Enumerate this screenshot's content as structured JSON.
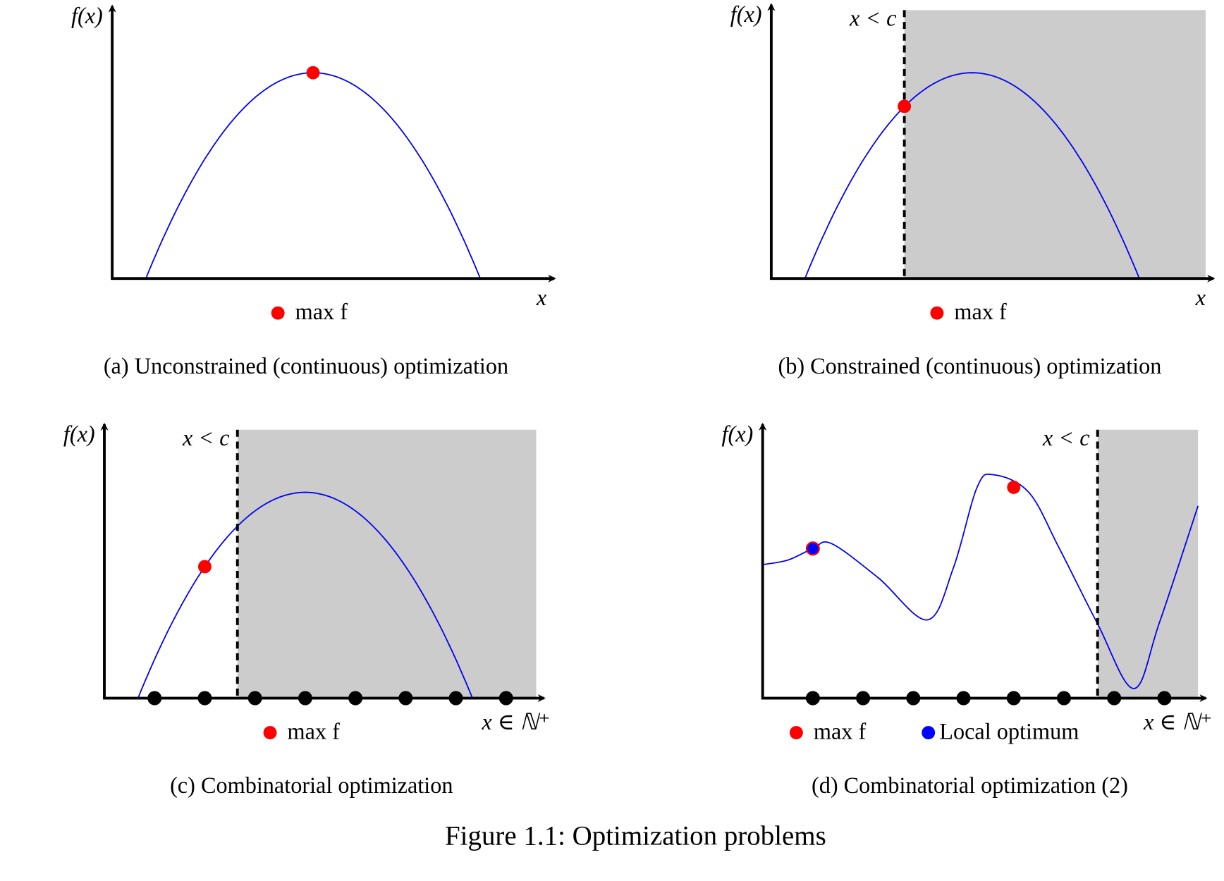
{
  "figure_caption": "Figure 1.1: Optimization problems",
  "colors": {
    "curve": "#0000ee",
    "max": "#ff0000",
    "local": "#0000ff",
    "shade": "#cccccc",
    "axis": "#000000"
  },
  "chart_data": {
    "type": "line",
    "title": "Figure 1.1: Optimization problems",
    "panels": [
      {
        "id": "a",
        "caption": "(a) Unconstrained (continuous) optimization",
        "ylabel": "f(x)",
        "xlabel": "x",
        "xlim": [
          0,
          8.65
        ],
        "ylim": [
          0,
          5.27
        ],
        "curve": {
          "kind": "parabola",
          "peak_x": 4,
          "peak_y": 4.1,
          "half_width": 3.33
        },
        "constraint": null,
        "integer_points": [],
        "markers": [
          {
            "type": "max",
            "x": 4,
            "y": 4.1
          }
        ],
        "legend": [
          {
            "type": "max",
            "label": "max f"
          }
        ]
      },
      {
        "id": "b",
        "caption": "(b) Constrained (continuous) optimization",
        "ylabel": "f(x)",
        "xlabel": "x",
        "xlim": [
          0,
          8.65
        ],
        "ylim": [
          0,
          5.3
        ],
        "curve": {
          "kind": "parabola",
          "peak_x": 4,
          "peak_y": 4.1,
          "half_width": 3.33
        },
        "constraint": {
          "label": "x < c",
          "c": 2.65
        },
        "integer_points": [],
        "markers": [
          {
            "type": "max",
            "x": 2.65,
            "y": 3.43
          }
        ],
        "legend": [
          {
            "type": "max",
            "label": "max f"
          }
        ]
      },
      {
        "id": "c",
        "caption": "(c) Combinatorial optimization",
        "ylabel": "f(x)",
        "xlabel": "x ∈ ℕ⁺",
        "xlim": [
          0,
          8.6
        ],
        "ylim": [
          0,
          5.3
        ],
        "curve": {
          "kind": "parabola",
          "peak_x": 4,
          "peak_y": 4.1,
          "half_width": 3.33
        },
        "constraint": {
          "label": "x < c",
          "c": 2.65
        },
        "integer_points": [
          1,
          2,
          3,
          4,
          5,
          6,
          7,
          8
        ],
        "markers": [
          {
            "type": "max",
            "x": 2,
            "y": 2.62
          }
        ],
        "legend": [
          {
            "type": "max",
            "label": "max f"
          }
        ]
      },
      {
        "id": "d",
        "caption": "(d) Combinatorial optimization (2)",
        "ylabel": "f(x)",
        "xlabel": "x ∈ ℕ⁺",
        "xlim": [
          0,
          8.67
        ],
        "ylim": [
          0,
          5.3
        ],
        "curve": {
          "kind": "points",
          "points": [
            [
              0,
              2.66
            ],
            [
              0.5,
              2.75
            ],
            [
              1,
              2.98
            ],
            [
              1.37,
              3.08
            ],
            [
              2.3,
              2.4
            ],
            [
              3.28,
              1.56
            ],
            [
              3.8,
              2.6
            ],
            [
              4.27,
              4.2
            ],
            [
              4.6,
              4.45
            ],
            [
              5.3,
              4.1
            ],
            [
              5.9,
              3.0
            ],
            [
              6.67,
              1.48
            ],
            [
              7.39,
              0.19
            ],
            [
              7.9,
              1.5
            ],
            [
              8.67,
              3.83
            ]
          ]
        },
        "constraint": {
          "label": "x < c",
          "c": 6.67
        },
        "integer_points": [
          1,
          2,
          3,
          4,
          5,
          6,
          7,
          8
        ],
        "markers": [
          {
            "type": "local",
            "x": 1,
            "y": 2.98
          },
          {
            "type": "max",
            "x": 5,
            "y": 4.2
          }
        ],
        "legend": [
          {
            "type": "max",
            "label": "max f"
          },
          {
            "type": "local",
            "label": "Local optimum"
          }
        ]
      }
    ]
  }
}
